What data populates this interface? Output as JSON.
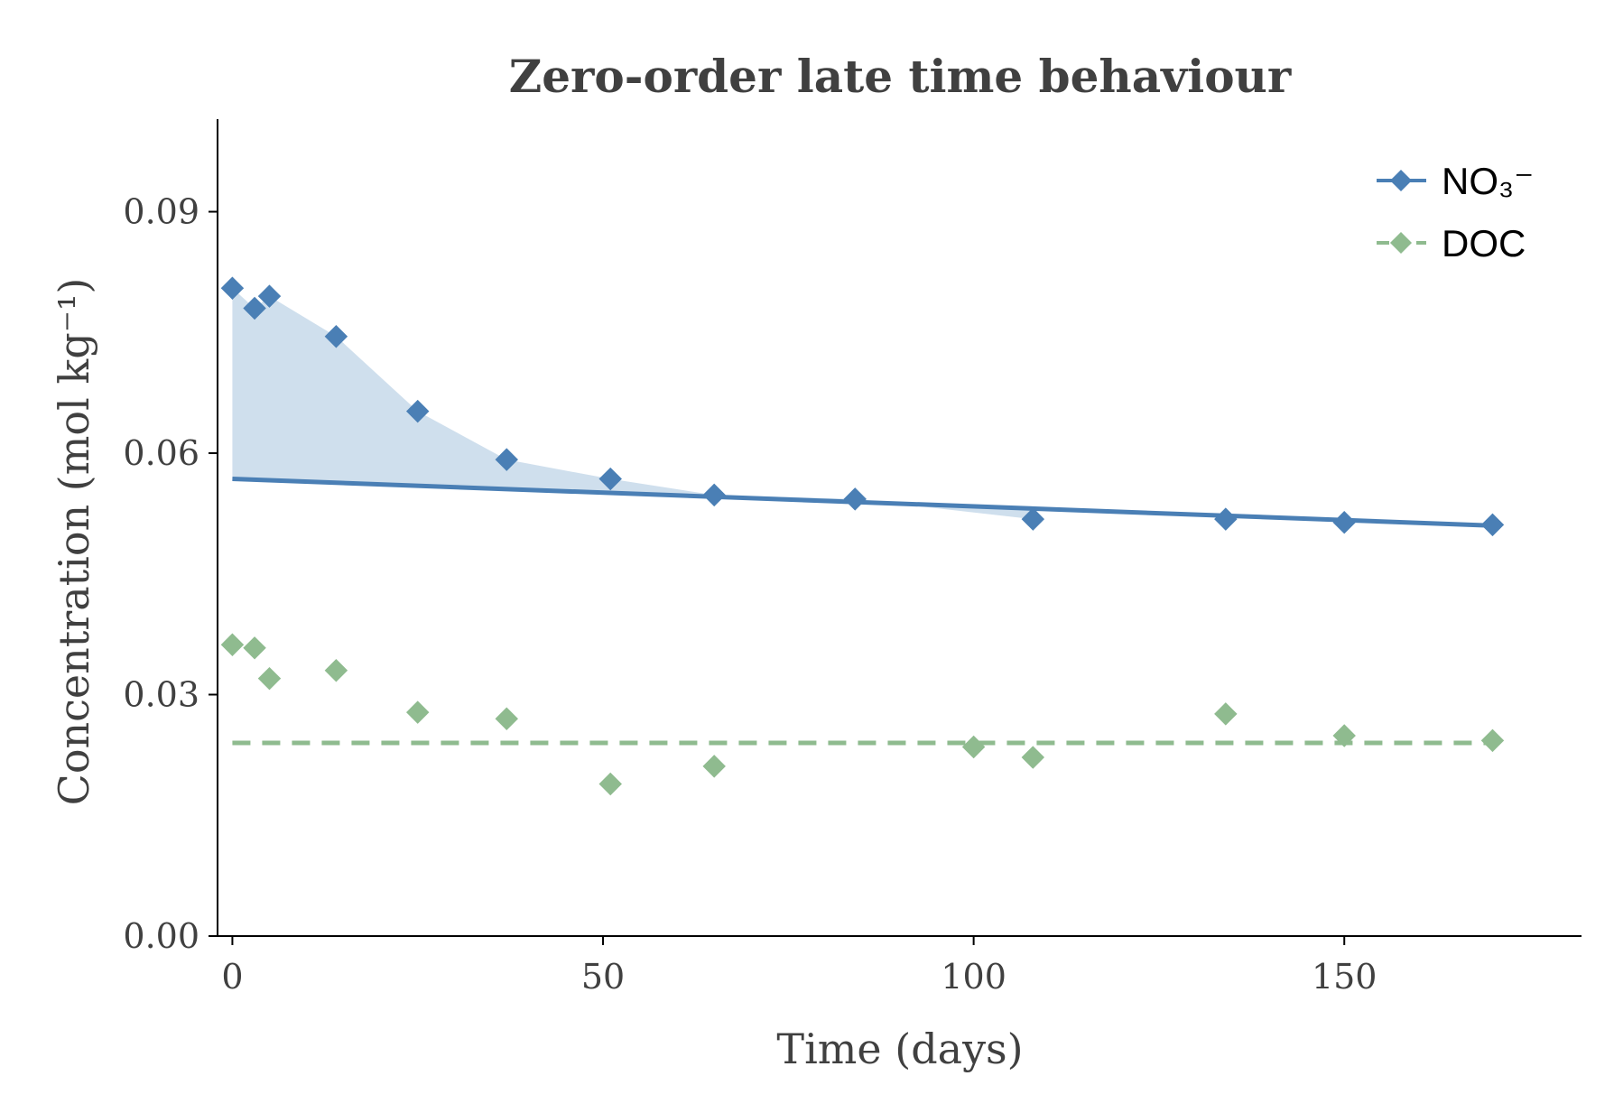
{
  "chart_data": {
    "type": "line",
    "title": "Zero-order late time behaviour",
    "xlabel": "Time (days)",
    "ylabel": "Concentration (mol kg⁻¹)",
    "xlim": [
      -2,
      182
    ],
    "ylim": [
      0,
      0.1015
    ],
    "x_ticks": [
      0,
      50,
      100,
      150
    ],
    "x_tick_labels": [
      "0",
      "50",
      "100",
      "150"
    ],
    "y_ticks": [
      0,
      0.03,
      0.06,
      0.09
    ],
    "y_tick_labels": [
      "0.00",
      "0.03",
      "0.06",
      "0.09"
    ],
    "grid": false,
    "legend_position": "top-right",
    "series": [
      {
        "name": "NO₃⁻",
        "color": "#4a7fb5",
        "marker": "diamond",
        "line_style": "solid",
        "points": {
          "x": [
            0,
            3,
            5,
            14,
            25,
            37,
            51,
            65,
            84,
            108,
            134,
            150,
            170
          ],
          "y": [
            0.0805,
            0.078,
            0.0795,
            0.0745,
            0.0652,
            0.0592,
            0.0568,
            0.0548,
            0.0543,
            0.0518,
            0.0518,
            0.0514,
            0.0511
          ]
        },
        "fit_line": {
          "x": [
            0,
            170
          ],
          "y": [
            0.0568,
            0.051
          ]
        },
        "shaded_fill_color": "#cfdfed"
      },
      {
        "name": "DOC",
        "color": "#8fbb8f",
        "marker": "diamond",
        "line_style": "dashed",
        "points": {
          "x": [
            0,
            3,
            5,
            14,
            25,
            37,
            51,
            65,
            100,
            108,
            134,
            150,
            170
          ],
          "y": [
            0.0362,
            0.0358,
            0.032,
            0.033,
            0.0278,
            0.027,
            0.0189,
            0.0211,
            0.0235,
            0.0222,
            0.0276,
            0.0249,
            0.0243
          ]
        },
        "fit_line": {
          "x": [
            0,
            170
          ],
          "y": [
            0.024,
            0.024
          ]
        }
      }
    ]
  }
}
